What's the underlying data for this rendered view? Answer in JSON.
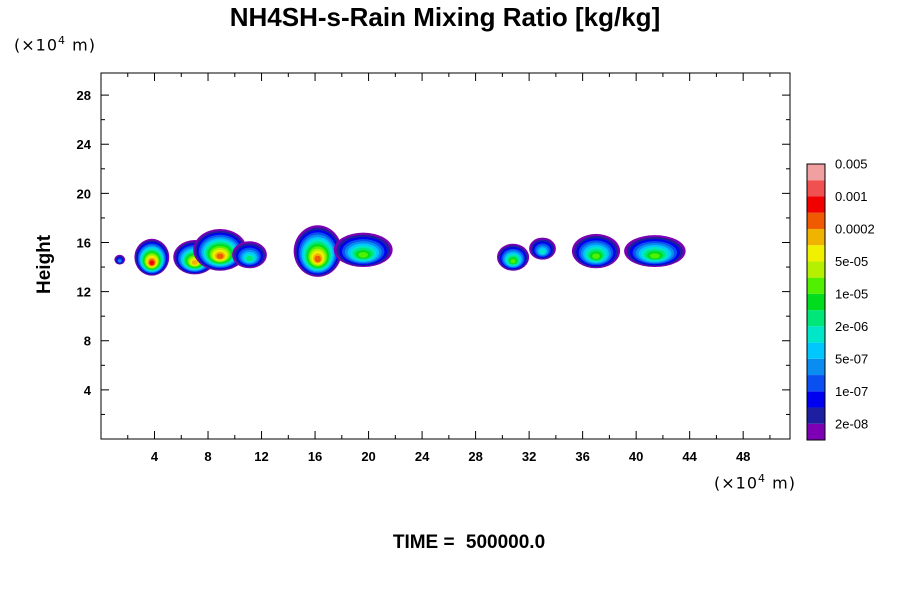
{
  "chart_data": {
    "type": "heatmap",
    "title": "NH4SH-s-Rain Mixing Ratio [kg/kg]",
    "ylabel": "Height",
    "xlabel": "",
    "x_unit": {
      "prefix": "(×10",
      "exp": "4",
      "suffix": " m)"
    },
    "y_unit": {
      "prefix": "(×10",
      "exp": "4",
      "suffix": " m)"
    },
    "xlim": [
      0,
      51.5
    ],
    "ylim": [
      0,
      29.8
    ],
    "x_ticks": [
      4,
      8,
      12,
      16,
      20,
      24,
      28,
      32,
      36,
      40,
      44,
      48
    ],
    "x_tick_labels": [
      "4",
      "8",
      "12",
      "16",
      "20",
      "24",
      "28",
      "32",
      "36",
      "40",
      "44",
      "48"
    ],
    "y_ticks": [
      4,
      8,
      12,
      16,
      20,
      24,
      28
    ],
    "y_tick_labels": [
      "4",
      "8",
      "12",
      "16",
      "20",
      "24",
      "28"
    ],
    "colorbar": {
      "colors": [
        "#7d00b4",
        "#1e1ea0",
        "#0000f0",
        "#0a50f0",
        "#0a8cf0",
        "#00c8ff",
        "#00e6c8",
        "#00e678",
        "#00dc1e",
        "#50f000",
        "#b4f000",
        "#f0f000",
        "#f0b400",
        "#f05a00",
        "#f00000",
        "#f05050",
        "#f0a0a0"
      ],
      "labels": [
        "2e-08",
        "1e-07",
        "5e-07",
        "2e-06",
        "1e-05",
        "5e-05",
        "0.0002",
        "0.001",
        "0.005"
      ]
    },
    "clouds": [
      {
        "cx": 3.8,
        "cy": 14.8,
        "rx": 1.3,
        "ry": 1.5,
        "peak": 14
      },
      {
        "cx": 1.4,
        "cy": 14.6,
        "rx": 0.4,
        "ry": 0.4,
        "peak": 4
      },
      {
        "cx": 7.0,
        "cy": 14.8,
        "rx": 1.6,
        "ry": 1.4,
        "peak": 12
      },
      {
        "cx": 8.9,
        "cy": 15.4,
        "rx": 2.0,
        "ry": 1.7,
        "peak": 13
      },
      {
        "cx": 11.1,
        "cy": 15.0,
        "rx": 1.3,
        "ry": 1.1,
        "peak": 7
      },
      {
        "cx": 16.2,
        "cy": 15.3,
        "rx": 1.8,
        "ry": 2.1,
        "peak": 13
      },
      {
        "cx": 19.6,
        "cy": 15.4,
        "rx": 2.2,
        "ry": 1.4,
        "peak": 9
      },
      {
        "cx": 30.8,
        "cy": 14.8,
        "rx": 1.2,
        "ry": 1.1,
        "peak": 9
      },
      {
        "cx": 33.0,
        "cy": 15.5,
        "rx": 1.0,
        "ry": 0.9,
        "peak": 6
      },
      {
        "cx": 37.0,
        "cy": 15.3,
        "rx": 1.8,
        "ry": 1.4,
        "peak": 9
      },
      {
        "cx": 41.4,
        "cy": 15.3,
        "rx": 2.3,
        "ry": 1.3,
        "peak": 9
      }
    ],
    "time_label": "TIME = ",
    "time_value": "500000.0"
  }
}
